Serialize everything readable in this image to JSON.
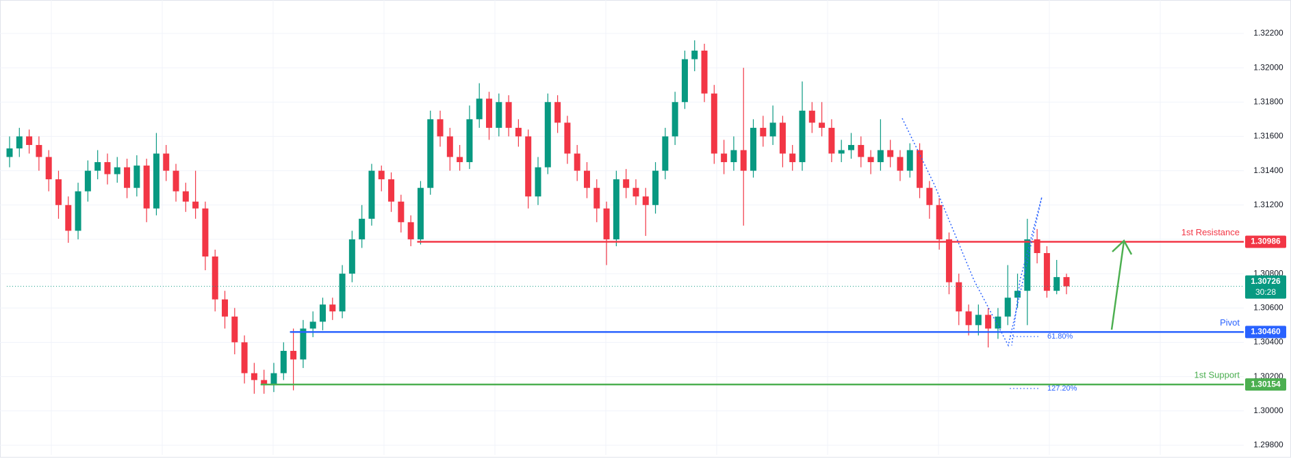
{
  "chart_data": {
    "type": "candlestick",
    "open": [
      1.3148,
      1.3153,
      1.316,
      1.3155,
      1.3148,
      1.3135,
      1.312,
      1.3105,
      1.3128,
      1.314,
      1.3145,
      1.3138,
      1.3142,
      1.313,
      1.3143,
      1.3118,
      1.315,
      1.314,
      1.3128,
      1.3122,
      1.3118,
      1.309,
      1.3065,
      1.3055,
      1.304,
      1.3022,
      1.3018,
      1.3015,
      1.3022,
      1.3035,
      1.303,
      1.3048,
      1.3052,
      1.3062,
      1.3058,
      1.308,
      1.31,
      1.3112,
      1.314,
      1.3135,
      1.3122,
      1.311,
      1.31,
      1.313,
      1.317,
      1.316,
      1.3148,
      1.3145,
      1.317,
      1.3182,
      1.3165,
      1.318,
      1.3165,
      1.316,
      1.3125,
      1.3142,
      1.318,
      1.3168,
      1.315,
      1.314,
      1.313,
      1.3118,
      1.31,
      1.3135,
      1.313,
      1.3125,
      1.312,
      1.314,
      1.316,
      1.318,
      1.3205,
      1.321,
      1.3185,
      1.315,
      1.3145,
      1.3152,
      1.314,
      1.3165,
      1.316,
      1.3168,
      1.315,
      1.3145,
      1.3175,
      1.3168,
      1.3165,
      1.315,
      1.3152,
      1.3155,
      1.3148,
      1.3145,
      1.3152,
      1.3148,
      1.314,
      1.3152,
      1.313,
      1.312,
      1.31,
      1.3075,
      1.3058,
      1.305,
      1.3056,
      1.3048,
      1.3055,
      1.3066,
      1.307,
      1.31,
      1.3092,
      1.307,
      1.3078
    ],
    "high": [
      1.316,
      1.3165,
      1.3164,
      1.316,
      1.3152,
      1.314,
      1.3125,
      1.3133,
      1.3146,
      1.3152,
      1.315,
      1.3148,
      1.3147,
      1.3149,
      1.3147,
      1.3162,
      1.3155,
      1.3144,
      1.3133,
      1.314,
      1.3122,
      1.3094,
      1.307,
      1.306,
      1.3044,
      1.3028,
      1.3024,
      1.3028,
      1.304,
      1.3048,
      1.3053,
      1.3058,
      1.3066,
      1.3066,
      1.3085,
      1.3105,
      1.312,
      1.3144,
      1.3143,
      1.3139,
      1.3126,
      1.3114,
      1.3134,
      1.3175,
      1.3175,
      1.3165,
      1.3155,
      1.3178,
      1.3191,
      1.3186,
      1.3185,
      1.3184,
      1.317,
      1.3164,
      1.3148,
      1.3185,
      1.3184,
      1.3172,
      1.3155,
      1.3145,
      1.3135,
      1.3122,
      1.314,
      1.3141,
      1.3135,
      1.313,
      1.3145,
      1.3165,
      1.3186,
      1.321,
      1.3216,
      1.3214,
      1.319,
      1.3158,
      1.316,
      1.32,
      1.317,
      1.3172,
      1.3178,
      1.3172,
      1.3155,
      1.3192,
      1.318,
      1.318,
      1.317,
      1.3158,
      1.3162,
      1.316,
      1.3152,
      1.317,
      1.3158,
      1.3152,
      1.3156,
      1.3156,
      1.3134,
      1.3124,
      1.3104,
      1.308,
      1.3062,
      1.3062,
      1.306,
      1.306,
      1.3085,
      1.308,
      1.3112,
      1.3106,
      1.3096,
      1.3088,
      1.308
    ],
    "low": [
      1.3142,
      1.3148,
      1.315,
      1.314,
      1.3128,
      1.3112,
      1.3098,
      1.31,
      1.3122,
      1.3135,
      1.3132,
      1.3133,
      1.3124,
      1.3125,
      1.311,
      1.3114,
      1.3134,
      1.3122,
      1.3116,
      1.3112,
      1.3082,
      1.3058,
      1.3048,
      1.3033,
      1.3016,
      1.301,
      1.301,
      1.3011,
      1.3018,
      1.3012,
      1.3025,
      1.3043,
      1.3047,
      1.3053,
      1.3054,
      1.3075,
      1.3095,
      1.3108,
      1.3128,
      1.3116,
      1.3104,
      1.3096,
      1.3097,
      1.3126,
      1.3154,
      1.314,
      1.314,
      1.3141,
      1.3165,
      1.3158,
      1.316,
      1.316,
      1.3154,
      1.3118,
      1.312,
      1.3138,
      1.3162,
      1.3144,
      1.3134,
      1.3124,
      1.311,
      1.3085,
      1.3096,
      1.3124,
      1.312,
      1.3102,
      1.3115,
      1.3135,
      1.3155,
      1.3176,
      1.3198,
      1.318,
      1.3144,
      1.3138,
      1.314,
      1.3108,
      1.3136,
      1.3154,
      1.3155,
      1.3142,
      1.314,
      1.314,
      1.3162,
      1.316,
      1.3145,
      1.3145,
      1.3147,
      1.3142,
      1.3138,
      1.314,
      1.3142,
      1.3134,
      1.3136,
      1.3124,
      1.3112,
      1.3094,
      1.3068,
      1.305,
      1.3044,
      1.3044,
      1.3037,
      1.3042,
      1.305,
      1.306,
      1.305,
      1.3086,
      1.3066,
      1.3068,
      1.3068
    ],
    "close": [
      1.3153,
      1.316,
      1.3155,
      1.3148,
      1.3135,
      1.312,
      1.3105,
      1.3128,
      1.314,
      1.3145,
      1.3138,
      1.3142,
      1.313,
      1.3143,
      1.3118,
      1.315,
      1.314,
      1.3128,
      1.3122,
      1.3118,
      1.309,
      1.3065,
      1.3055,
      1.304,
      1.3022,
      1.3018,
      1.3015,
      1.3022,
      1.3035,
      1.303,
      1.3048,
      1.3052,
      1.3062,
      1.3058,
      1.308,
      1.31,
      1.3112,
      1.314,
      1.3135,
      1.3122,
      1.311,
      1.31,
      1.313,
      1.317,
      1.316,
      1.3148,
      1.3145,
      1.317,
      1.3182,
      1.3165,
      1.318,
      1.3165,
      1.316,
      1.3125,
      1.3142,
      1.318,
      1.3168,
      1.315,
      1.314,
      1.313,
      1.3118,
      1.31,
      1.3135,
      1.313,
      1.3125,
      1.312,
      1.314,
      1.316,
      1.318,
      1.3205,
      1.321,
      1.3185,
      1.315,
      1.3145,
      1.3152,
      1.314,
      1.3165,
      1.316,
      1.3168,
      1.315,
      1.3145,
      1.3175,
      1.3168,
      1.3165,
      1.315,
      1.3152,
      1.3155,
      1.3148,
      1.3145,
      1.3152,
      1.3148,
      1.314,
      1.3152,
      1.313,
      1.312,
      1.31,
      1.3075,
      1.3058,
      1.305,
      1.3056,
      1.3048,
      1.3055,
      1.3066,
      1.307,
      1.31,
      1.3092,
      1.307,
      1.3078,
      1.30726
    ],
    "up_color": "#089981",
    "down_color": "#f23645",
    "ylim": [
      1.29744,
      1.32395
    ],
    "yticks": [
      {
        "value": 1.298,
        "label": "1.29800"
      },
      {
        "value": 1.3,
        "label": "1.30000"
      },
      {
        "value": 1.302,
        "label": "1.30200"
      },
      {
        "value": 1.304,
        "label": "1.30400"
      },
      {
        "value": 1.306,
        "label": "1.30600"
      },
      {
        "value": 1.308,
        "label": "1.30800"
      },
      {
        "value": 1.31,
        "label": "1.31000"
      },
      {
        "value": 1.312,
        "label": "1.31200"
      },
      {
        "value": 1.314,
        "label": "1.31400"
      },
      {
        "value": 1.316,
        "label": "1.31600"
      },
      {
        "value": 1.318,
        "label": "1.31800"
      },
      {
        "value": 1.32,
        "label": "1.32000"
      },
      {
        "value": 1.322,
        "label": "1.32200"
      }
    ],
    "grid": true,
    "levels": [
      {
        "name": "1st Resistance",
        "value": 1.30986,
        "label": "1.30986",
        "color": "#f23645"
      },
      {
        "name": "Pivot",
        "value": 1.3046,
        "label": "1.30460",
        "color": "#2962ff"
      },
      {
        "name": "1st Support",
        "value": 1.30154,
        "label": "1.30154",
        "color": "#4caf50"
      }
    ],
    "current_price": {
      "value": 1.30726,
      "label": "1.30726",
      "countdown": "30:28",
      "color": "#089981"
    },
    "fib_labels": [
      {
        "value": 61.8,
        "label": "61.80%"
      },
      {
        "value": 127.2,
        "label": "127.20%"
      }
    ]
  }
}
